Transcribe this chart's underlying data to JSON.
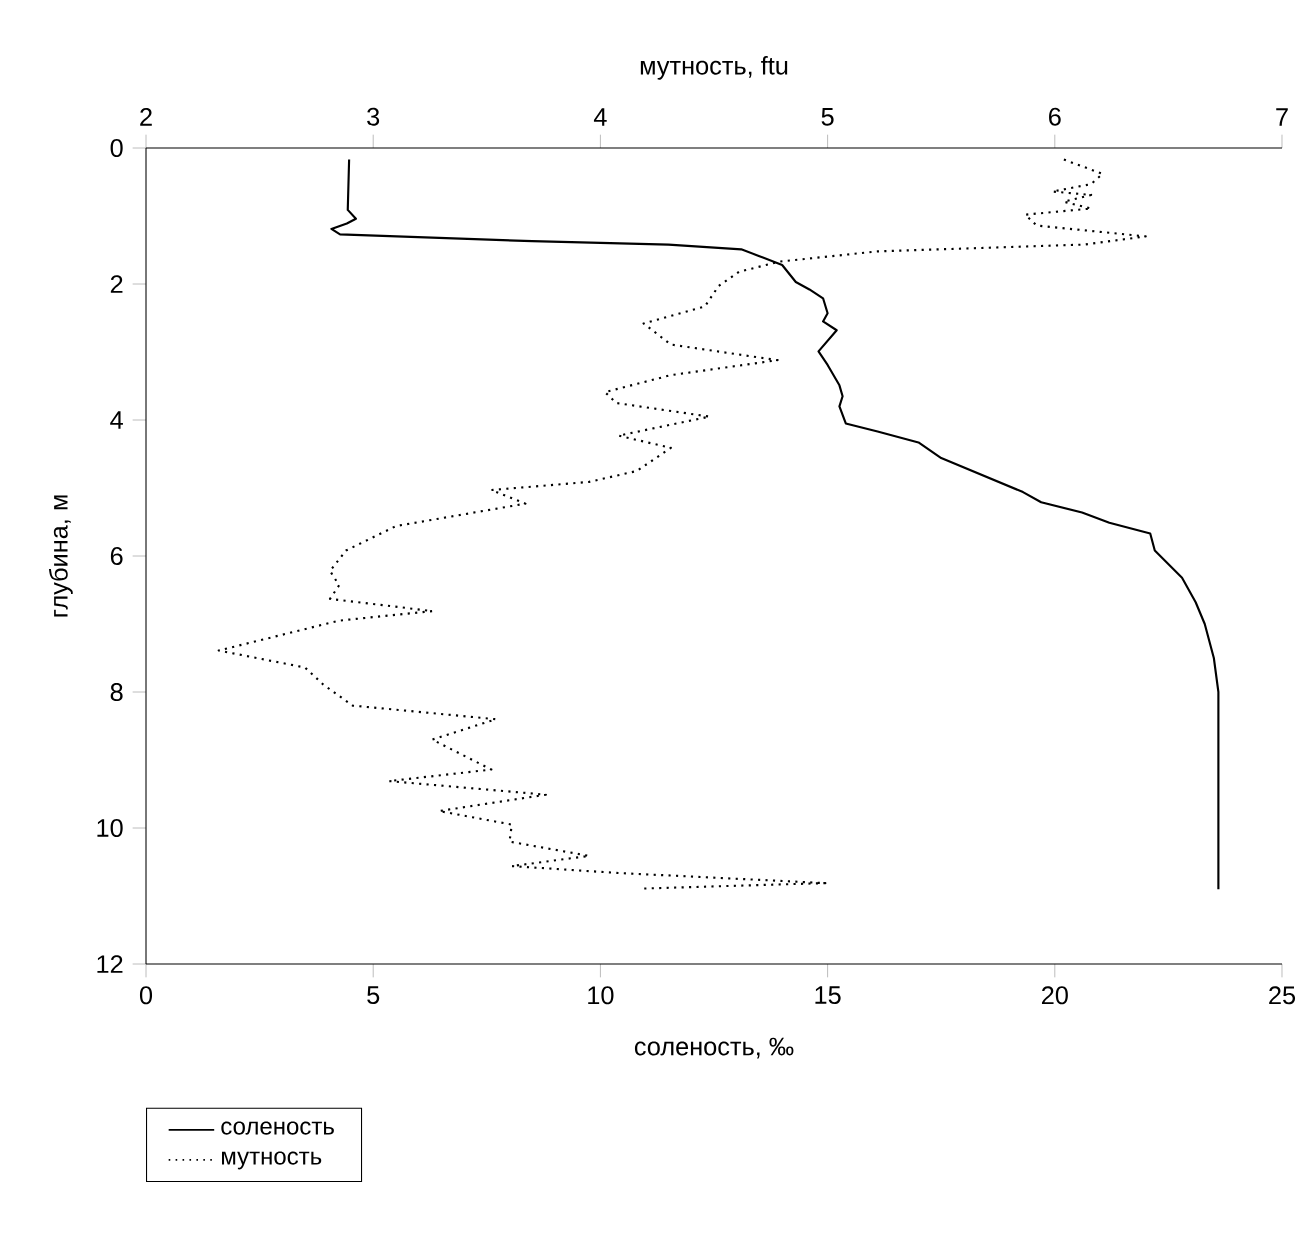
{
  "chart_data": {
    "type": "line",
    "xlabel": "соленость, ‰",
    "x2label": "мутность, ftu",
    "ylabel": "глубина, м",
    "xlim": [
      0,
      25
    ],
    "xticks": [
      0,
      5,
      10,
      15,
      20,
      25
    ],
    "x2lim": [
      2,
      7
    ],
    "x2ticks": [
      2,
      3,
      4,
      5,
      6,
      7
    ],
    "ylim": [
      12,
      0
    ],
    "yticks": [
      0,
      2,
      4,
      6,
      8,
      10,
      12
    ],
    "legend": "bottom left",
    "marker": "none",
    "grid": false,
    "series": [
      {
        "name": "соленость",
        "color": "#000000",
        "line_style": "solid",
        "x": [
          4.47,
          4.44,
          4.62,
          4.42,
          4.08,
          4.27,
          8.5,
          11.5,
          13.1,
          13.5,
          14.0,
          14.3,
          14.6,
          14.9,
          15.0,
          14.9,
          15.2,
          14.8,
          15.0,
          15.26,
          15.33,
          15.26,
          15.4,
          16.1,
          17.0,
          17.5,
          18.4,
          19.3,
          19.7,
          20.6,
          21.2,
          22.1,
          22.2,
          22.8,
          23.1,
          23.3,
          23.5,
          23.6,
          23.6
        ],
        "values": [
          0.17,
          0.91,
          1.04,
          1.11,
          1.19,
          1.27,
          1.37,
          1.42,
          1.49,
          1.59,
          1.72,
          1.97,
          2.08,
          2.21,
          2.43,
          2.55,
          2.68,
          2.99,
          3.19,
          3.49,
          3.65,
          3.8,
          4.05,
          4.17,
          4.33,
          4.56,
          4.81,
          5.06,
          5.21,
          5.36,
          5.51,
          5.67,
          5.92,
          6.32,
          6.68,
          7.0,
          7.5,
          8.0,
          10.9
        ]
      },
      {
        "name": "мутность",
        "color": "#000000",
        "line_style": "dotted",
        "axis": "x2",
        "x": [
          6.04,
          6.21,
          6.16,
          5.99,
          6.16,
          6.04,
          6.16,
          5.87,
          5.92,
          6.4,
          6.13,
          5.22,
          4.79,
          4.61,
          4.52,
          4.46,
          4.19,
          4.31,
          4.78,
          4.31,
          4.02,
          4.07,
          4.48,
          4.08,
          4.31,
          4.16,
          3.95,
          3.52,
          3.67,
          3.1,
          2.88,
          2.81,
          2.85,
          2.81,
          3.26,
          2.85,
          2.32,
          2.7,
          2.78,
          2.91,
          3.54,
          3.26,
          3.52,
          3.07,
          3.76,
          3.29,
          3.61,
          3.6,
          3.95,
          3.61,
          4.07,
          4.99,
          4.19
        ],
        "values": [
          0.17,
          0.38,
          0.53,
          0.64,
          0.69,
          0.79,
          0.89,
          0.98,
          1.14,
          1.3,
          1.42,
          1.52,
          1.67,
          1.82,
          2.03,
          2.33,
          2.58,
          2.89,
          3.12,
          3.34,
          3.59,
          3.75,
          3.95,
          4.23,
          4.41,
          4.75,
          4.91,
          5.03,
          5.23,
          5.56,
          5.92,
          6.22,
          6.43,
          6.63,
          6.81,
          6.95,
          7.39,
          7.64,
          7.89,
          8.2,
          8.4,
          8.7,
          9.14,
          9.31,
          9.51,
          9.75,
          9.95,
          10.2,
          10.41,
          10.56,
          10.66,
          10.81,
          10.89
        ]
      }
    ]
  }
}
